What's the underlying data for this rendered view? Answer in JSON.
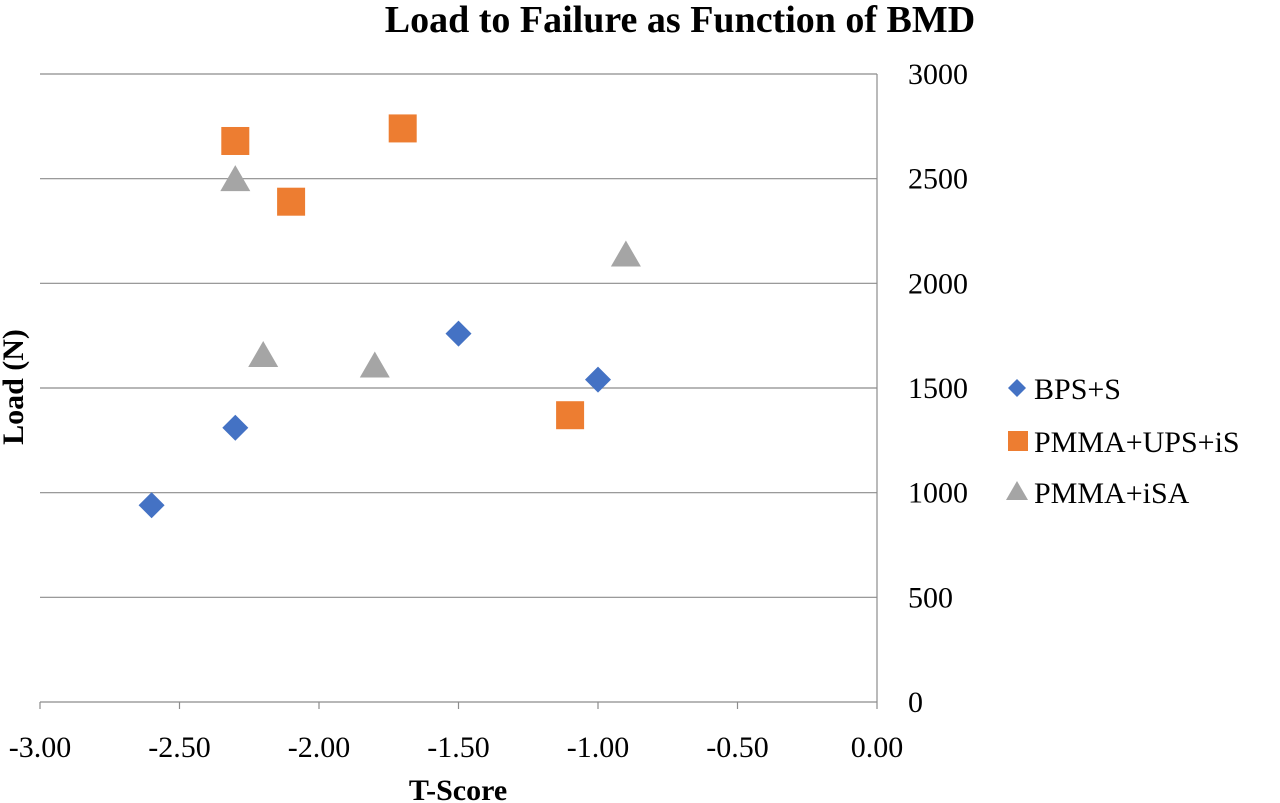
{
  "chart_data": {
    "type": "scatter",
    "title": "Load to Failure as Function of BMD",
    "xlabel": "T-Score",
    "ylabel": "Load (N)",
    "xlim": [
      -3.0,
      0.0
    ],
    "ylim": [
      0,
      3000
    ],
    "x_ticks": [
      "-3.00",
      "-2.50",
      "-2.00",
      "-1.50",
      "-1.00",
      "-0.50",
      "0.00"
    ],
    "y_ticks": [
      "0",
      "500",
      "1000",
      "1500",
      "2000",
      "2500",
      "3000"
    ],
    "y_axis_side": "right",
    "grid": "horizontal",
    "legend_position": "right",
    "series": [
      {
        "name": "BPS+S",
        "marker": "diamond",
        "color": "#4472C4",
        "points": [
          {
            "x": -2.6,
            "y": 940
          },
          {
            "x": -2.3,
            "y": 1310
          },
          {
            "x": -1.5,
            "y": 1760
          },
          {
            "x": -1.0,
            "y": 1540
          }
        ]
      },
      {
        "name": "PMMA+UPS+iS",
        "marker": "square",
        "color": "#ED7D31",
        "points": [
          {
            "x": -2.3,
            "y": 2680
          },
          {
            "x": -2.1,
            "y": 2390
          },
          {
            "x": -1.7,
            "y": 2740
          },
          {
            "x": -1.1,
            "y": 1370
          }
        ]
      },
      {
        "name": "PMMA+iSA",
        "marker": "triangle",
        "color": "#A5A5A5",
        "points": [
          {
            "x": -2.3,
            "y": 2490
          },
          {
            "x": -2.2,
            "y": 1650
          },
          {
            "x": -1.8,
            "y": 1600
          },
          {
            "x": -0.9,
            "y": 2130
          }
        ]
      }
    ]
  }
}
